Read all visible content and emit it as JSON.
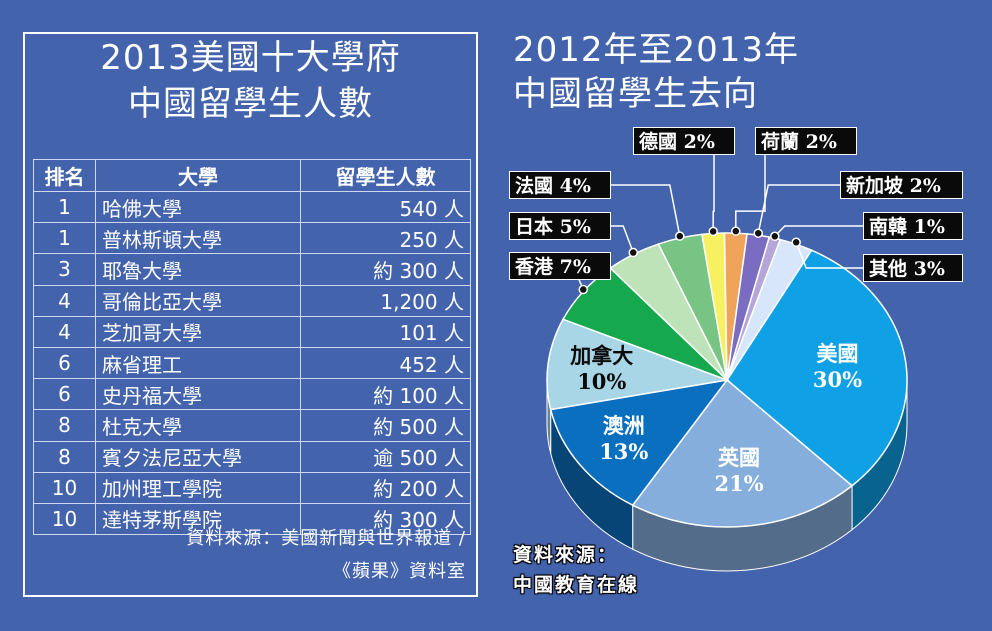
{
  "table": {
    "title_line1": "2013美國十大學府",
    "title_line2": "中國留學生人數",
    "headers": [
      "排名",
      "大學",
      "留學生人數"
    ],
    "rows": [
      {
        "rank": "1",
        "university": "哈佛大學",
        "count": "540 人"
      },
      {
        "rank": "1",
        "university": "普林斯頓大學",
        "count": "250 人"
      },
      {
        "rank": "3",
        "university": "耶魯大學",
        "count": "約 300 人"
      },
      {
        "rank": "4",
        "university": "哥倫比亞大學",
        "count": "1,200 人"
      },
      {
        "rank": "4",
        "university": "芝加哥大學",
        "count": "101 人"
      },
      {
        "rank": "6",
        "university": "麻省理工",
        "count": "452 人"
      },
      {
        "rank": "6",
        "university": "史丹福大學",
        "count": "約 100 人"
      },
      {
        "rank": "8",
        "university": "杜克大學",
        "count": "約 500 人"
      },
      {
        "rank": "8",
        "university": "賓夕法尼亞大學",
        "count": "逾 500 人"
      },
      {
        "rank": "10",
        "university": "加州理工學院",
        "count": "約 200 人"
      },
      {
        "rank": "10",
        "university": "達特茅斯學院",
        "count": "約 300 人"
      }
    ],
    "source_line1": "資料來源：美國新聞與世界報道 /",
    "source_line2": "《蘋果》資料室"
  },
  "pie": {
    "title_line1": "2012年至2013年",
    "title_line2": "中國留學生去向",
    "source_line1": "資料來源：",
    "source_line2": "中國教育在線"
  },
  "chart_data": {
    "type": "pie",
    "slices": [
      {
        "label": "美國",
        "value": 30,
        "display": "30%",
        "color": "#0fa0e6"
      },
      {
        "label": "英國",
        "value": 21,
        "display": "21%",
        "color": "#86aedd"
      },
      {
        "label": "澳洲",
        "value": 13,
        "display": "13%",
        "color": "#0b6fc0"
      },
      {
        "label": "加拿大",
        "value": 10,
        "display": "10%",
        "color": "#a8d6e6"
      },
      {
        "label": "香港",
        "value": 7,
        "display": "7%",
        "color": "#16a84e"
      },
      {
        "label": "日本",
        "value": 5,
        "display": "5%",
        "color": "#bfe3b8"
      },
      {
        "label": "法國",
        "value": 4,
        "display": "4%",
        "color": "#78c484"
      },
      {
        "label": "德國",
        "value": 2,
        "display": "2%",
        "color": "#f7f060"
      },
      {
        "label": "荷蘭",
        "value": 2,
        "display": "2%",
        "color": "#f0a45a"
      },
      {
        "label": "新加坡",
        "value": 2,
        "display": "2%",
        "color": "#7a6cc0"
      },
      {
        "label": "南韓",
        "value": 1,
        "display": "1%",
        "color": "#b5a6d9"
      },
      {
        "label": "其他",
        "value": 3,
        "display": "3%",
        "color": "#d8e6fb"
      }
    ]
  }
}
